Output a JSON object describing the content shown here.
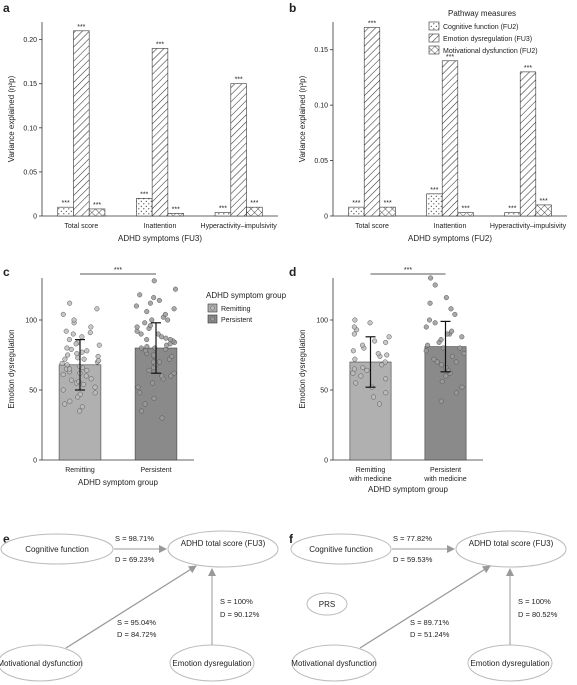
{
  "panels": {
    "a": "a",
    "b": "b",
    "c": "c",
    "d": "d",
    "e": "e",
    "f": "f"
  },
  "chart_data": [
    {
      "panel": "a",
      "type": "bar",
      "categories": [
        "Total score",
        "Inattention",
        "Hyperactivity–impulsivity"
      ],
      "series": [
        {
          "name": "Cognitive function (FU2)",
          "pattern": "dots",
          "values": [
            0.01,
            0.02,
            0.004
          ],
          "sig": [
            "***",
            "***",
            "***"
          ]
        },
        {
          "name": "Emotion dysregulation (FU3)",
          "pattern": "diagonal",
          "values": [
            0.21,
            0.19,
            0.15
          ],
          "sig": [
            "***",
            "***",
            "***"
          ]
        },
        {
          "name": "Motivational dysfunction (FU2)",
          "pattern": "crosshatch",
          "values": [
            0.008,
            0.003,
            0.01
          ],
          "sig": [
            "***",
            "***",
            "***"
          ]
        }
      ],
      "ylim": [
        0,
        0.22
      ],
      "yticks": [
        0,
        0.05,
        0.1,
        0.15,
        0.2
      ],
      "ytick_labels": [
        "0",
        "0.05",
        "0.10",
        "0.15",
        "0.20"
      ],
      "ylabel": "Variance explained (η²p)",
      "xlabel": "ADHD symptoms (FU3)"
    },
    {
      "panel": "b",
      "type": "bar",
      "categories": [
        "Total score",
        "Inattention",
        "Hyperactivity–impulsivity"
      ],
      "series": [
        {
          "name": "Cognitive function (FU2)",
          "pattern": "dots",
          "values": [
            0.008,
            0.02,
            0.003
          ],
          "sig": [
            "***",
            "***",
            "***"
          ]
        },
        {
          "name": "Emotion dysregulation (FU3)",
          "pattern": "diagonal",
          "values": [
            0.17,
            0.14,
            0.13
          ],
          "sig": [
            "***",
            "***",
            "***"
          ]
        },
        {
          "name": "Motivational dysfunction (FU2)",
          "pattern": "crosshatch",
          "values": [
            0.008,
            0.003,
            0.01
          ],
          "sig": [
            "***",
            "***",
            "***"
          ]
        }
      ],
      "ylim": [
        0,
        0.175
      ],
      "yticks": [
        0,
        0.05,
        0.1,
        0.15
      ],
      "ytick_labels": [
        "0",
        "0.05",
        "0.10",
        "0.15"
      ],
      "ylabel": "Variance explained (η²p)",
      "xlabel": "ADHD symptoms (FU2)",
      "legend_title": "Pathway measures",
      "legend_position": "top-right"
    },
    {
      "panel": "c",
      "type": "bar",
      "categories": [
        "Remitting",
        "Persistent"
      ],
      "values": [
        68,
        80
      ],
      "errors": [
        18,
        18
      ],
      "colors": [
        "#b0b0b0",
        "#8a8a8a"
      ],
      "ylim": [
        0,
        130
      ],
      "yticks": [
        0,
        50,
        100
      ],
      "ylabel": "Emotion dysregulation",
      "xlabel": "ADHD symptom group",
      "significance": "***",
      "legend_title": "ADHD symptom group",
      "legend_entries": [
        "Remitting",
        "Persistent"
      ],
      "scatter_points": [
        {
          "group": 0,
          "y": [
            35,
            38,
            40,
            42,
            45,
            47,
            50,
            52,
            54,
            55,
            57,
            58,
            60,
            61,
            62,
            63,
            64,
            65,
            66,
            67,
            68,
            69,
            70,
            71,
            72,
            73,
            74,
            75,
            76,
            77,
            78,
            79,
            80,
            82,
            84,
            86,
            88,
            90,
            92,
            95,
            98,
            100,
            104,
            108,
            112,
            48,
            56,
            65,
            72,
            83,
            91
          ]
        },
        {
          "group": 1,
          "y": [
            30,
            35,
            40,
            44,
            48,
            52,
            55,
            58,
            60,
            62,
            64,
            66,
            68,
            70,
            72,
            74,
            75,
            76,
            78,
            79,
            80,
            81,
            82,
            83,
            84,
            85,
            86,
            87,
            88,
            90,
            92,
            94,
            96,
            98,
            100,
            102,
            104,
            106,
            108,
            110,
            112,
            114,
            116,
            118,
            122,
            128,
            60,
            70,
            80,
            90,
            100,
            74,
            86,
            95
          ]
        }
      ]
    },
    {
      "panel": "d",
      "type": "bar",
      "categories": [
        "Remitting with medicine",
        "Persistent with medicine"
      ],
      "values": [
        70,
        81
      ],
      "errors": [
        18,
        18
      ],
      "colors": [
        "#b0b0b0",
        "#8a8a8a"
      ],
      "ylim": [
        0,
        130
      ],
      "yticks": [
        0,
        50,
        100
      ],
      "ylabel": "Emotion dysregulation",
      "xlabel": "ADHD symptom group",
      "significance": "***",
      "scatter_points": [
        {
          "group": 0,
          "y": [
            40,
            45,
            48,
            52,
            55,
            58,
            60,
            62,
            64,
            66,
            68,
            70,
            72,
            74,
            76,
            78,
            80,
            82,
            85,
            88,
            90,
            93,
            95,
            98,
            100,
            65,
            75,
            84
          ]
        },
        {
          "group": 1,
          "y": [
            42,
            48,
            52,
            56,
            60,
            62,
            64,
            66,
            68,
            70,
            72,
            74,
            76,
            78,
            80,
            82,
            84,
            86,
            88,
            90,
            92,
            95,
            98,
            100,
            104,
            108,
            112,
            116,
            125,
            130,
            70,
            80,
            90
          ]
        }
      ]
    }
  ],
  "path_diagrams": [
    {
      "panel": "e",
      "nodes": [
        "Cognitive function",
        "ADHD total score (FU3)",
        "Motivational dysfunction",
        "Emotion dysregulation"
      ],
      "edges": [
        {
          "s": "S = 98.71%",
          "d": "D = 69.23%"
        },
        {
          "s": "S = 95.04%",
          "d": "D = 84.72%"
        },
        {
          "s": "S = 100%",
          "d": "D = 90.12%"
        }
      ]
    },
    {
      "panel": "f",
      "nodes": [
        "Cognitive function",
        "ADHD total score (FU3)",
        "Motivational dysfunction",
        "Emotion dysregulation",
        "PRS"
      ],
      "edges": [
        {
          "s": "S = 77.82%",
          "d": "D = 59.53%"
        },
        {
          "s": "S = 89.71%",
          "d": "D = 51.24%"
        },
        {
          "s": "S = 100%",
          "d": "D = 80.52%"
        }
      ]
    }
  ]
}
